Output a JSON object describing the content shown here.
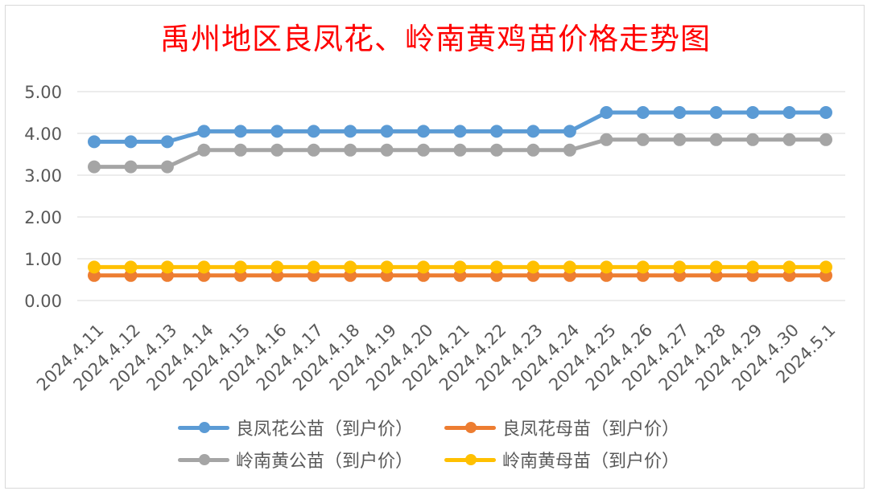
{
  "chart_data": {
    "type": "line",
    "title": "禹州地区良凤花、岭南黄鸡苗价格走势图",
    "xlabel": "",
    "ylabel": "",
    "categories": [
      "2024.4.11",
      "2024.4.12",
      "2024.4.13",
      "2024.4.14",
      "2024.4.15",
      "2024.4.16",
      "2024.4.17",
      "2024.4.18",
      "2024.4.19",
      "2024.4.20",
      "2024.4.21",
      "2024.4.22",
      "2024.4.23",
      "2024.4.24",
      "2024.4.25",
      "2024.4.26",
      "2024.4.27",
      "2024.4.28",
      "2024.4.29",
      "2024.4.30",
      "2024.5.1"
    ],
    "y_ticks": [
      "0.00",
      "1.00",
      "2.00",
      "3.00",
      "4.00",
      "5.00"
    ],
    "ylim": [
      0,
      5
    ],
    "grid": true,
    "legend_position": "bottom",
    "series": [
      {
        "name": "良凤花公苗（到户价）",
        "color": "#5b9bd5",
        "values": [
          3.8,
          3.8,
          3.8,
          4.05,
          4.05,
          4.05,
          4.05,
          4.05,
          4.05,
          4.05,
          4.05,
          4.05,
          4.05,
          4.05,
          4.5,
          4.5,
          4.5,
          4.5,
          4.5,
          4.5,
          4.5
        ]
      },
      {
        "name": "良凤花母苗（到户价）",
        "color": "#ed7d31",
        "values": [
          0.6,
          0.6,
          0.6,
          0.6,
          0.6,
          0.6,
          0.6,
          0.6,
          0.6,
          0.6,
          0.6,
          0.6,
          0.6,
          0.6,
          0.6,
          0.6,
          0.6,
          0.6,
          0.6,
          0.6,
          0.6
        ]
      },
      {
        "name": "岭南黄公苗（到户价）",
        "color": "#a5a5a5",
        "values": [
          3.2,
          3.2,
          3.2,
          3.6,
          3.6,
          3.6,
          3.6,
          3.6,
          3.6,
          3.6,
          3.6,
          3.6,
          3.6,
          3.6,
          3.85,
          3.85,
          3.85,
          3.85,
          3.85,
          3.85,
          3.85
        ]
      },
      {
        "name": "岭南黄母苗（到户价）",
        "color": "#ffc000",
        "values": [
          0.8,
          0.8,
          0.8,
          0.8,
          0.8,
          0.8,
          0.8,
          0.8,
          0.8,
          0.8,
          0.8,
          0.8,
          0.8,
          0.8,
          0.8,
          0.8,
          0.8,
          0.8,
          0.8,
          0.8,
          0.8
        ]
      }
    ]
  }
}
